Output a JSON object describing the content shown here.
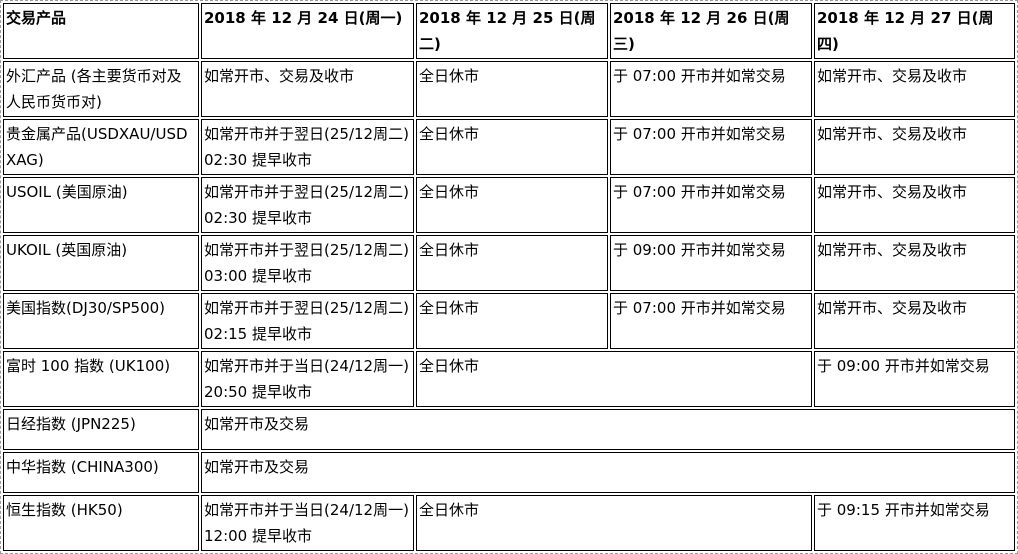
{
  "header": [
    "交易产品",
    "2018 年 12 月 24 日(周一)",
    "2018 年 12 月 25 日(周二)",
    "2018 年 12 月 26 日(周三)",
    "2018 年 12 月 27 日(周四)"
  ],
  "rows": [
    {
      "product": "外汇产品 (各主要货币对及人民币货币对)",
      "d24": "如常开市、交易及收市",
      "d25": "全日休市",
      "d26": "于 07:00 开市并如常交易",
      "d27": "如常开市、交易及收市"
    },
    {
      "product": "贵金属产品(USDXAU/USDXAG)",
      "d24": "如常开市并于翌日(25/12周二) 02:30 提早收市",
      "d25": "全日休市",
      "d26": "于 07:00 开市并如常交易",
      "d27": "如常开市、交易及收市"
    },
    {
      "product": "USOIL (美国原油)",
      "d24": "如常开市并于翌日(25/12周二) 02:30 提早收市",
      "d25": "全日休市",
      "d26": "于 07:00 开市并如常交易",
      "d27": "如常开市、交易及收市"
    },
    {
      "product": "UKOIL (英国原油)",
      "d24": "如常开市并于翌日(25/12周二) 03:00 提早收市",
      "d25": "全日休市",
      "d26": "于 09:00 开市并如常交易",
      "d27": "如常开市、交易及收市"
    },
    {
      "product": "美国指数(DJ30/SP500)",
      "d24": "如常开市并于翌日(25/12周二) 02:15 提早收市",
      "d25": "全日休市",
      "d26": "于 07:00 开市并如常交易",
      "d27": "如常开市、交易及收市"
    },
    {
      "product": "富时 100 指数 (UK100)",
      "d24": "如常开市并于当日(24/12周一) 20:50 提早收市",
      "d25_26": "全日休市",
      "d27": "于 09:00 开市并如常交易"
    },
    {
      "product": "日经指数 (JPN225)",
      "all": "如常开市及交易"
    },
    {
      "product": "中华指数 (CHINA300)",
      "all": "如常开市及交易"
    },
    {
      "product": "恒生指数 (HK50)",
      "d24": "如常开市并于当日(24/12周一)12:00 提早收市",
      "d25_26": "全日休市",
      "d27": "于 09:15 开市并如常交易"
    }
  ]
}
